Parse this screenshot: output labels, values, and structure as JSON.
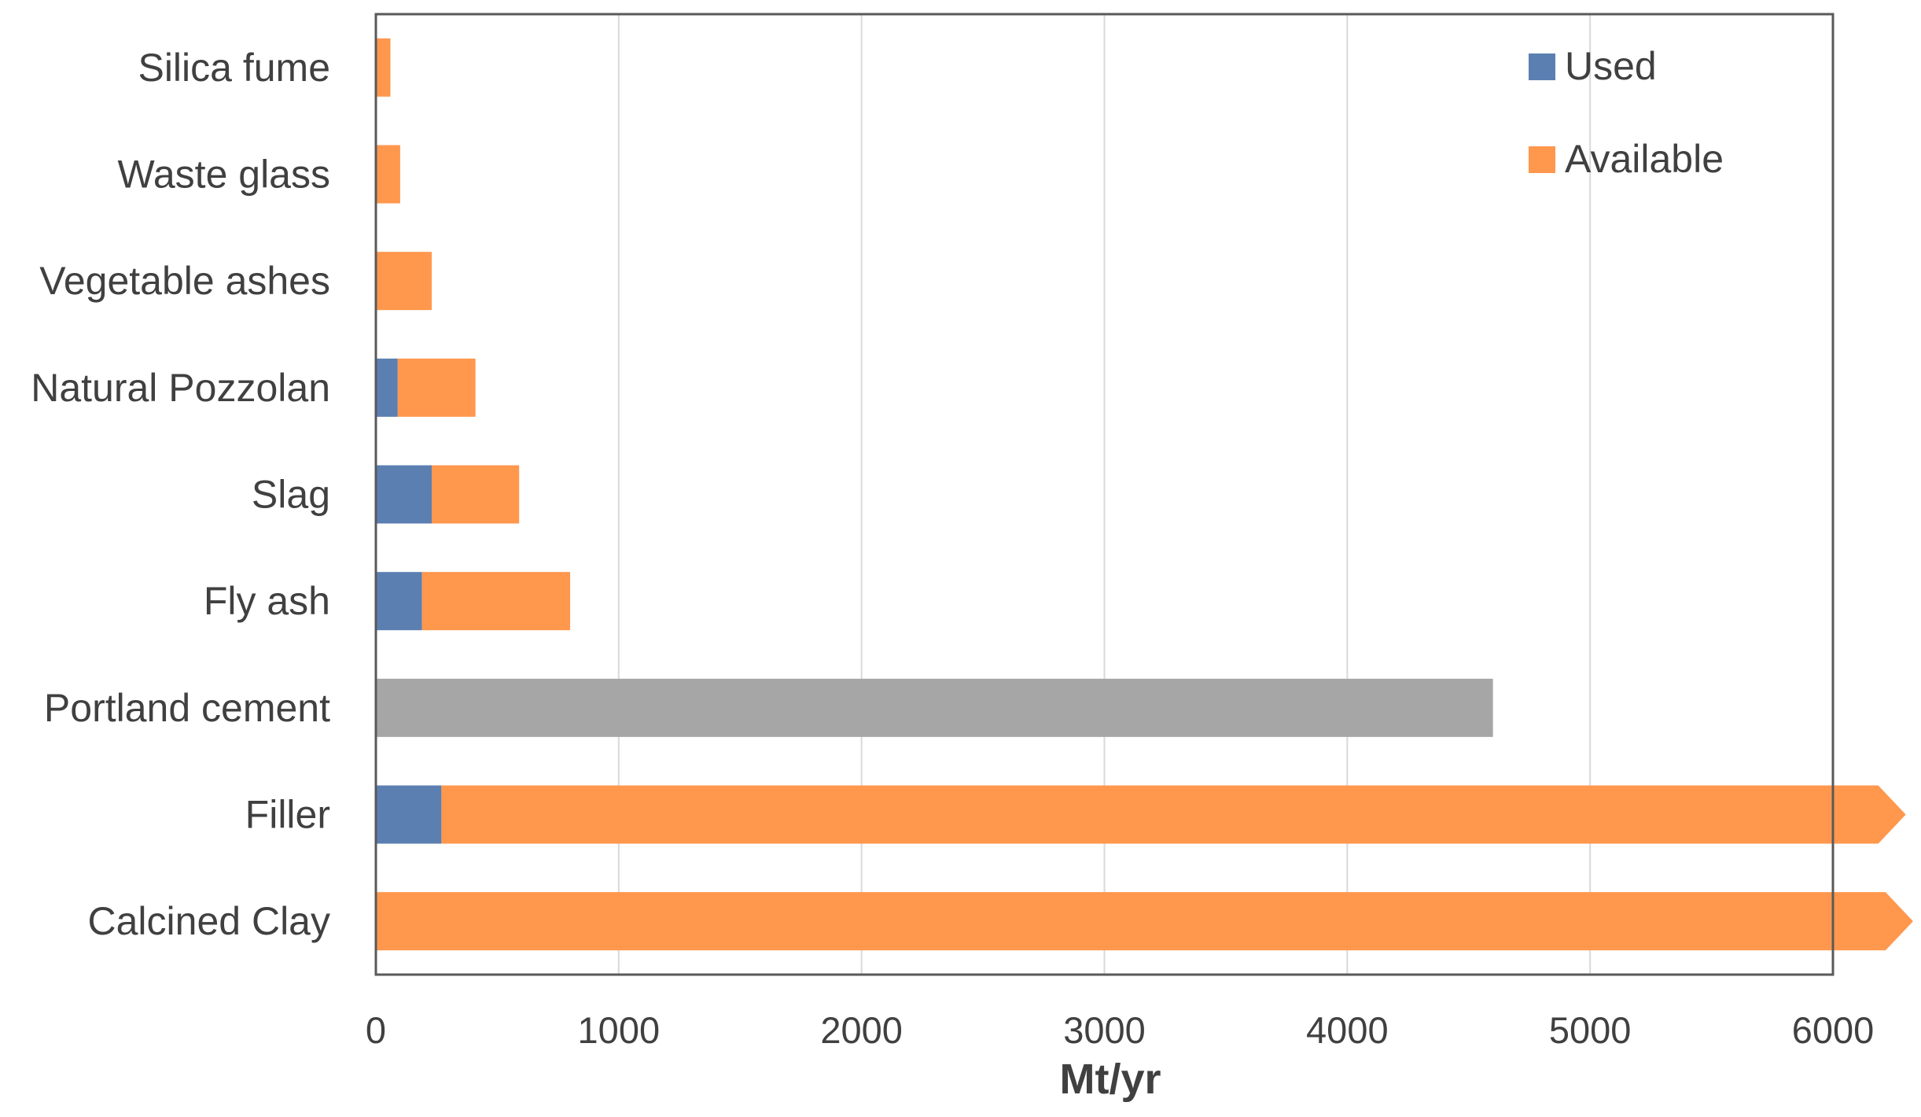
{
  "chart_data": {
    "type": "bar",
    "orientation": "horizontal",
    "stacked": true,
    "categories": [
      "Silica fume",
      "Waste glass",
      "Vegetable ashes",
      "Natural Pozzolan",
      "Slag",
      "Fly ash",
      "Portland cement",
      "Filler",
      "Calcined Clay"
    ],
    "series": [
      {
        "name": "Used",
        "color": "#5b7fb1",
        "values": [
          0,
          0,
          0,
          90,
          230,
          190,
          0,
          270,
          0
        ]
      },
      {
        "name": "Available",
        "color": "#ff974d",
        "values": [
          60,
          100,
          230,
          320,
          360,
          610,
          0,
          6030,
          6330
        ]
      }
    ],
    "reference_bar": {
      "category": "Portland cement",
      "value": 4600,
      "color": "#a6a6a6"
    },
    "arrow_categories": [
      "Filler",
      "Calcined Clay"
    ],
    "xlabel": "Mt/yr",
    "xlim": [
      0,
      6000
    ],
    "xticks": [
      0,
      1000,
      2000,
      3000,
      4000,
      5000,
      6000
    ],
    "xtick_labels": [
      "0",
      "1000",
      "2000",
      "3000",
      "4000",
      "5000",
      "6000"
    ],
    "grid": "vertical",
    "legend_position": "top-right"
  }
}
